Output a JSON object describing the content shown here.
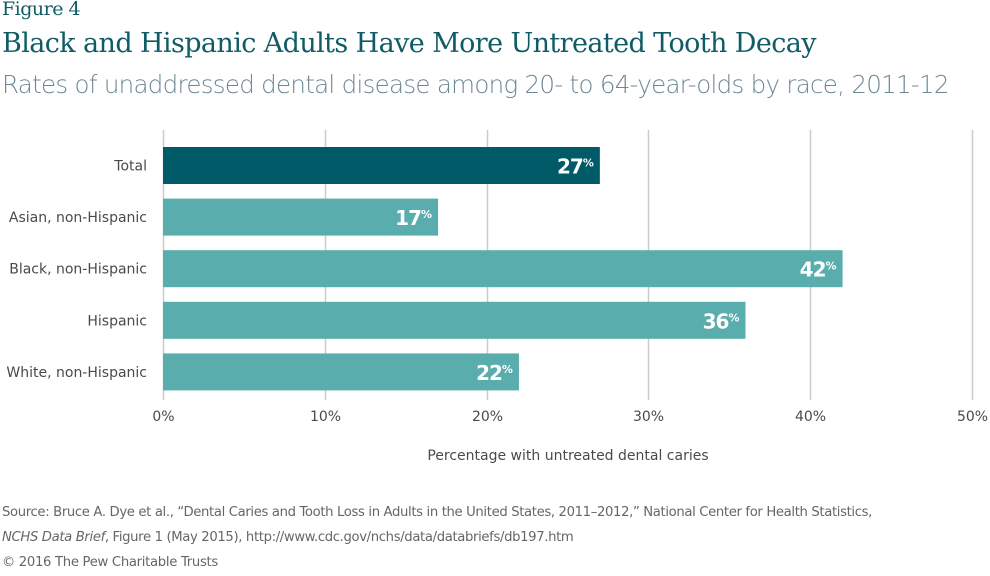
{
  "figure_label": "Figure 4",
  "title": "Black and Hispanic Adults Have More Untreated Tooth Decay",
  "subtitle": "Rates of unaddressed dental disease among 20- to 64-year-olds by race, 2011-12",
  "colors": {
    "highlight_bar": "#005a68",
    "bar": "#5aadad",
    "gridline": "#cccccc",
    "title": "#0f5c66",
    "subtitle": "#6d8795"
  },
  "chart_data": {
    "type": "bar",
    "orientation": "horizontal",
    "categories": [
      "Total",
      "Asian, non-Hispanic",
      "Black, non-Hispanic",
      "Hispanic",
      "White, non-Hispanic"
    ],
    "values": [
      27,
      17,
      42,
      36,
      22
    ],
    "value_labels": [
      "27",
      "17",
      "42",
      "36",
      "22"
    ],
    "value_suffix": "%",
    "highlight": [
      "Total"
    ],
    "xlabel": "Percentage with untreated dental caries",
    "ylabel": "",
    "xlim": [
      0,
      50
    ],
    "xticks": [
      0,
      10,
      20,
      30,
      40,
      50
    ],
    "xtick_labels": [
      "0%",
      "10%",
      "20%",
      "30%",
      "40%",
      "50%"
    ],
    "grid": "vertical",
    "legend": "none"
  },
  "source": {
    "line1_prefix": "Source: Bruce A. Dye et al., “Dental Caries and Tooth Loss in Adults in the United States, 2011–2012,” National Center for Health Statistics,",
    "line2_italic": "NCHS Data Brief",
    "line2_rest": ", Figure 1 (May 2015), http://www.cdc.gov/nchs/data/databriefs/db197.htm"
  },
  "copyright": "© 2016 The Pew Charitable Trusts"
}
